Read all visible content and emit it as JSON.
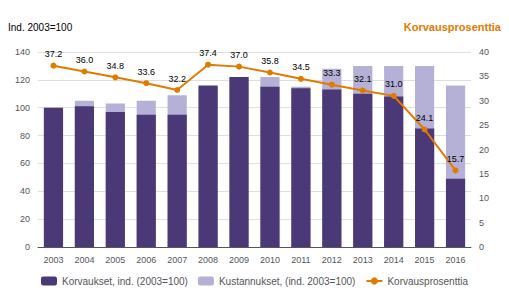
{
  "chart_data": {
    "type": "bar",
    "categories": [
      "2003",
      "2004",
      "2005",
      "2006",
      "2007",
      "2008",
      "2009",
      "2010",
      "2011",
      "2012",
      "2013",
      "2014",
      "2015",
      "2016"
    ],
    "series": [
      {
        "name": "Korvaukset, ind. (2003=100)",
        "color": "#4b3876",
        "values": [
          100,
          101,
          97,
          95,
          95,
          116,
          122,
          115,
          114,
          113,
          110,
          108,
          85,
          49
        ]
      },
      {
        "name": "Kustannukset, (ind. 2003=100)",
        "color": "#b5b0d5",
        "values": [
          100,
          105,
          103,
          105,
          109,
          115,
          122,
          122,
          115,
          128,
          130,
          130,
          130,
          116
        ]
      },
      {
        "name": "Korvausprosenttia",
        "type": "line",
        "marker": "circle",
        "color": "#e07b00",
        "axis": "y2",
        "data_labels": true,
        "values": [
          37.2,
          36.0,
          34.8,
          33.6,
          32.2,
          37.4,
          37.0,
          35.8,
          34.5,
          33.3,
          32.1,
          31.0,
          24.1,
          15.7
        ],
        "value_labels": [
          "37.2",
          "36.0",
          "34.8",
          "33.6",
          "32.2",
          "37.4",
          "37.0",
          "35.8",
          "34.5",
          "33.3",
          "32.1",
          "31.0",
          "24.1",
          "15.7"
        ]
      }
    ],
    "ylabel": "Ind. 2003=100",
    "y2label": "Korvausprosenttia",
    "ylim": [
      0,
      140
    ],
    "yticks": [
      0,
      20,
      40,
      60,
      80,
      100,
      120,
      140
    ],
    "y2lim": [
      0,
      40
    ],
    "y2ticks": [
      0,
      5,
      10,
      15,
      20,
      25,
      30,
      35,
      40
    ],
    "grid": true,
    "legend": "bottom"
  }
}
